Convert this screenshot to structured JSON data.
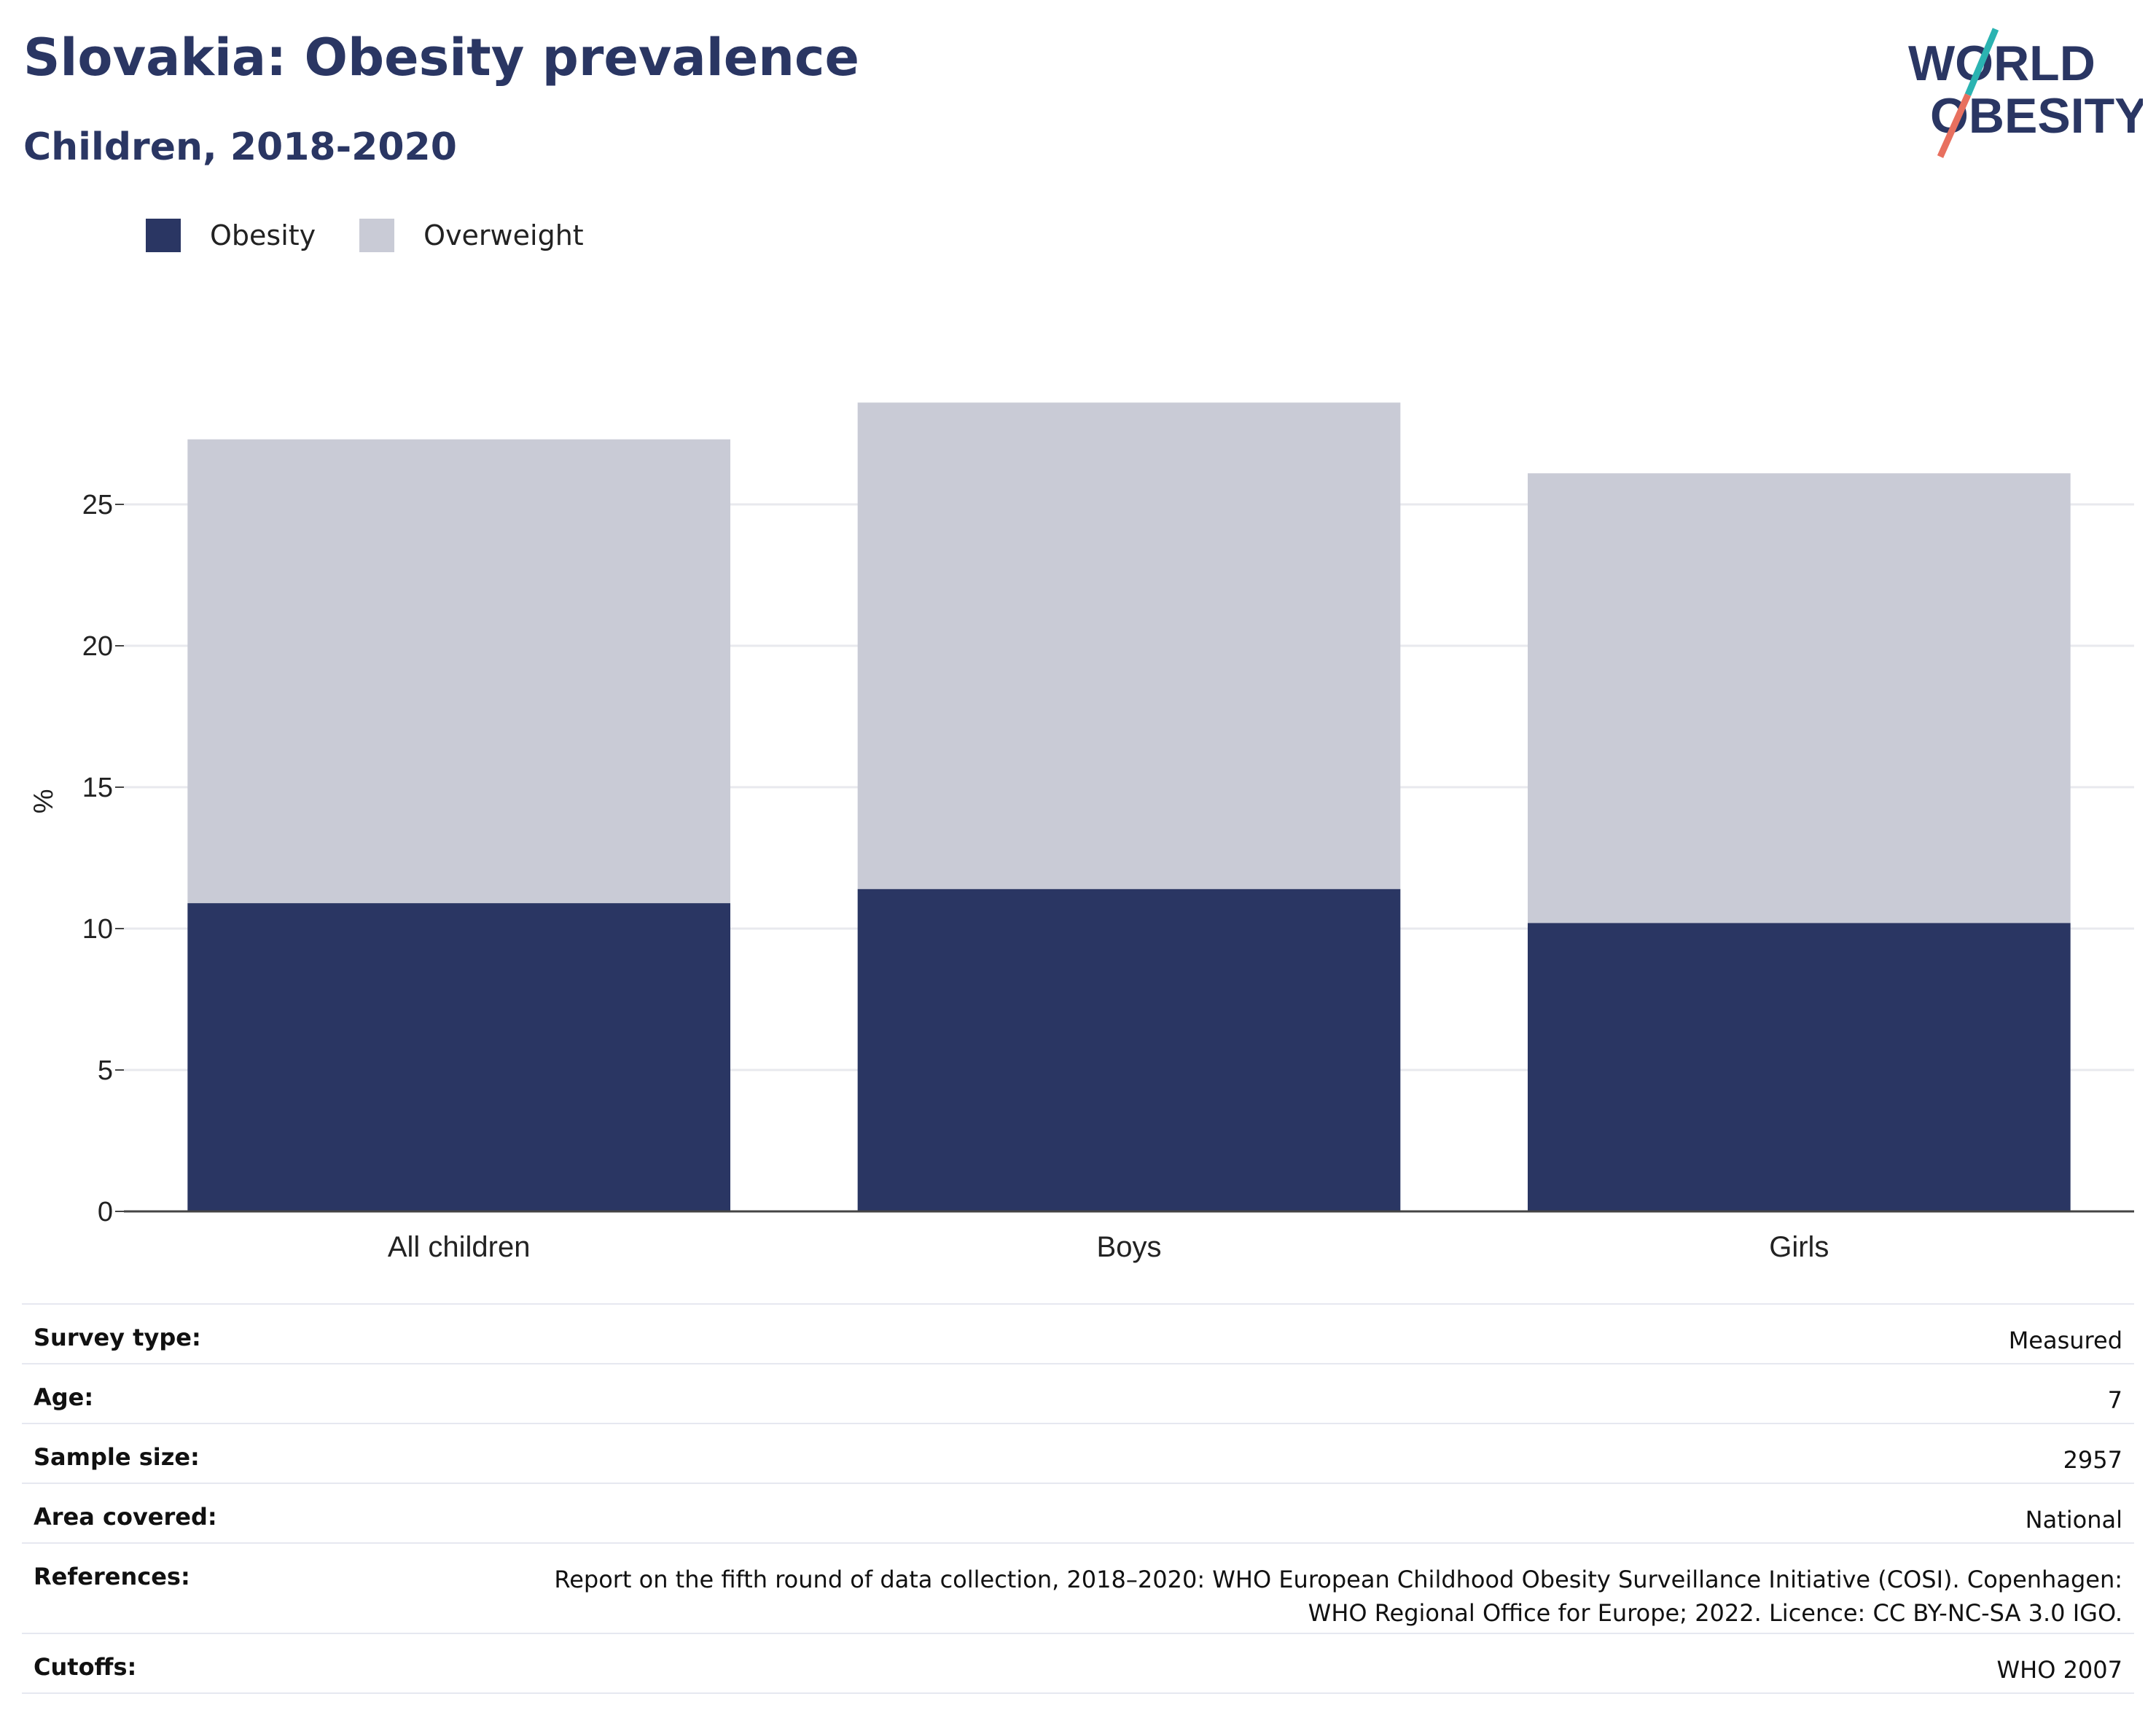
{
  "header": {
    "title": "Slovakia: Obesity prevalence",
    "subtitle": "Children, 2018-2020"
  },
  "logo": {
    "line1": "WORLD",
    "line2": "OBESITY",
    "accent_teal": "#2bb3b1",
    "accent_coral": "#e8705f"
  },
  "colors": {
    "obesity": "#2a3663",
    "overweight": "#c9cbd6",
    "text": "#2a3663"
  },
  "legend": [
    {
      "label": "Obesity"
    },
    {
      "label": "Overweight"
    }
  ],
  "chart_data": {
    "type": "bar",
    "stacked": true,
    "categories": [
      "All children",
      "Boys",
      "Girls"
    ],
    "series": [
      {
        "name": "Obesity",
        "values": [
          10.9,
          11.4,
          10.2
        ]
      },
      {
        "name": "Overweight",
        "values": [
          16.4,
          17.2,
          15.9
        ]
      }
    ],
    "ylabel": "%",
    "yticks": [
      0,
      5,
      10,
      15,
      20,
      25
    ],
    "ylim": [
      0,
      28.5
    ],
    "grid": true,
    "legend_position": "top-left"
  },
  "metadata": [
    {
      "label": "Survey type:",
      "value": "Measured"
    },
    {
      "label": "Age:",
      "value": "7"
    },
    {
      "label": "Sample size:",
      "value": "2957"
    },
    {
      "label": "Area covered:",
      "value": "National"
    },
    {
      "label": "References:",
      "value_line1": "Report on the fifth round of data collection, 2018–2020: WHO European Childhood Obesity Surveillance Initiative (COSI). Copenhagen:",
      "value_line2": "WHO Regional Office for Europe; 2022. Licence: CC BY-NC-SA 3.0 IGO."
    },
    {
      "label": "Cutoffs:",
      "value": "WHO 2007"
    }
  ]
}
